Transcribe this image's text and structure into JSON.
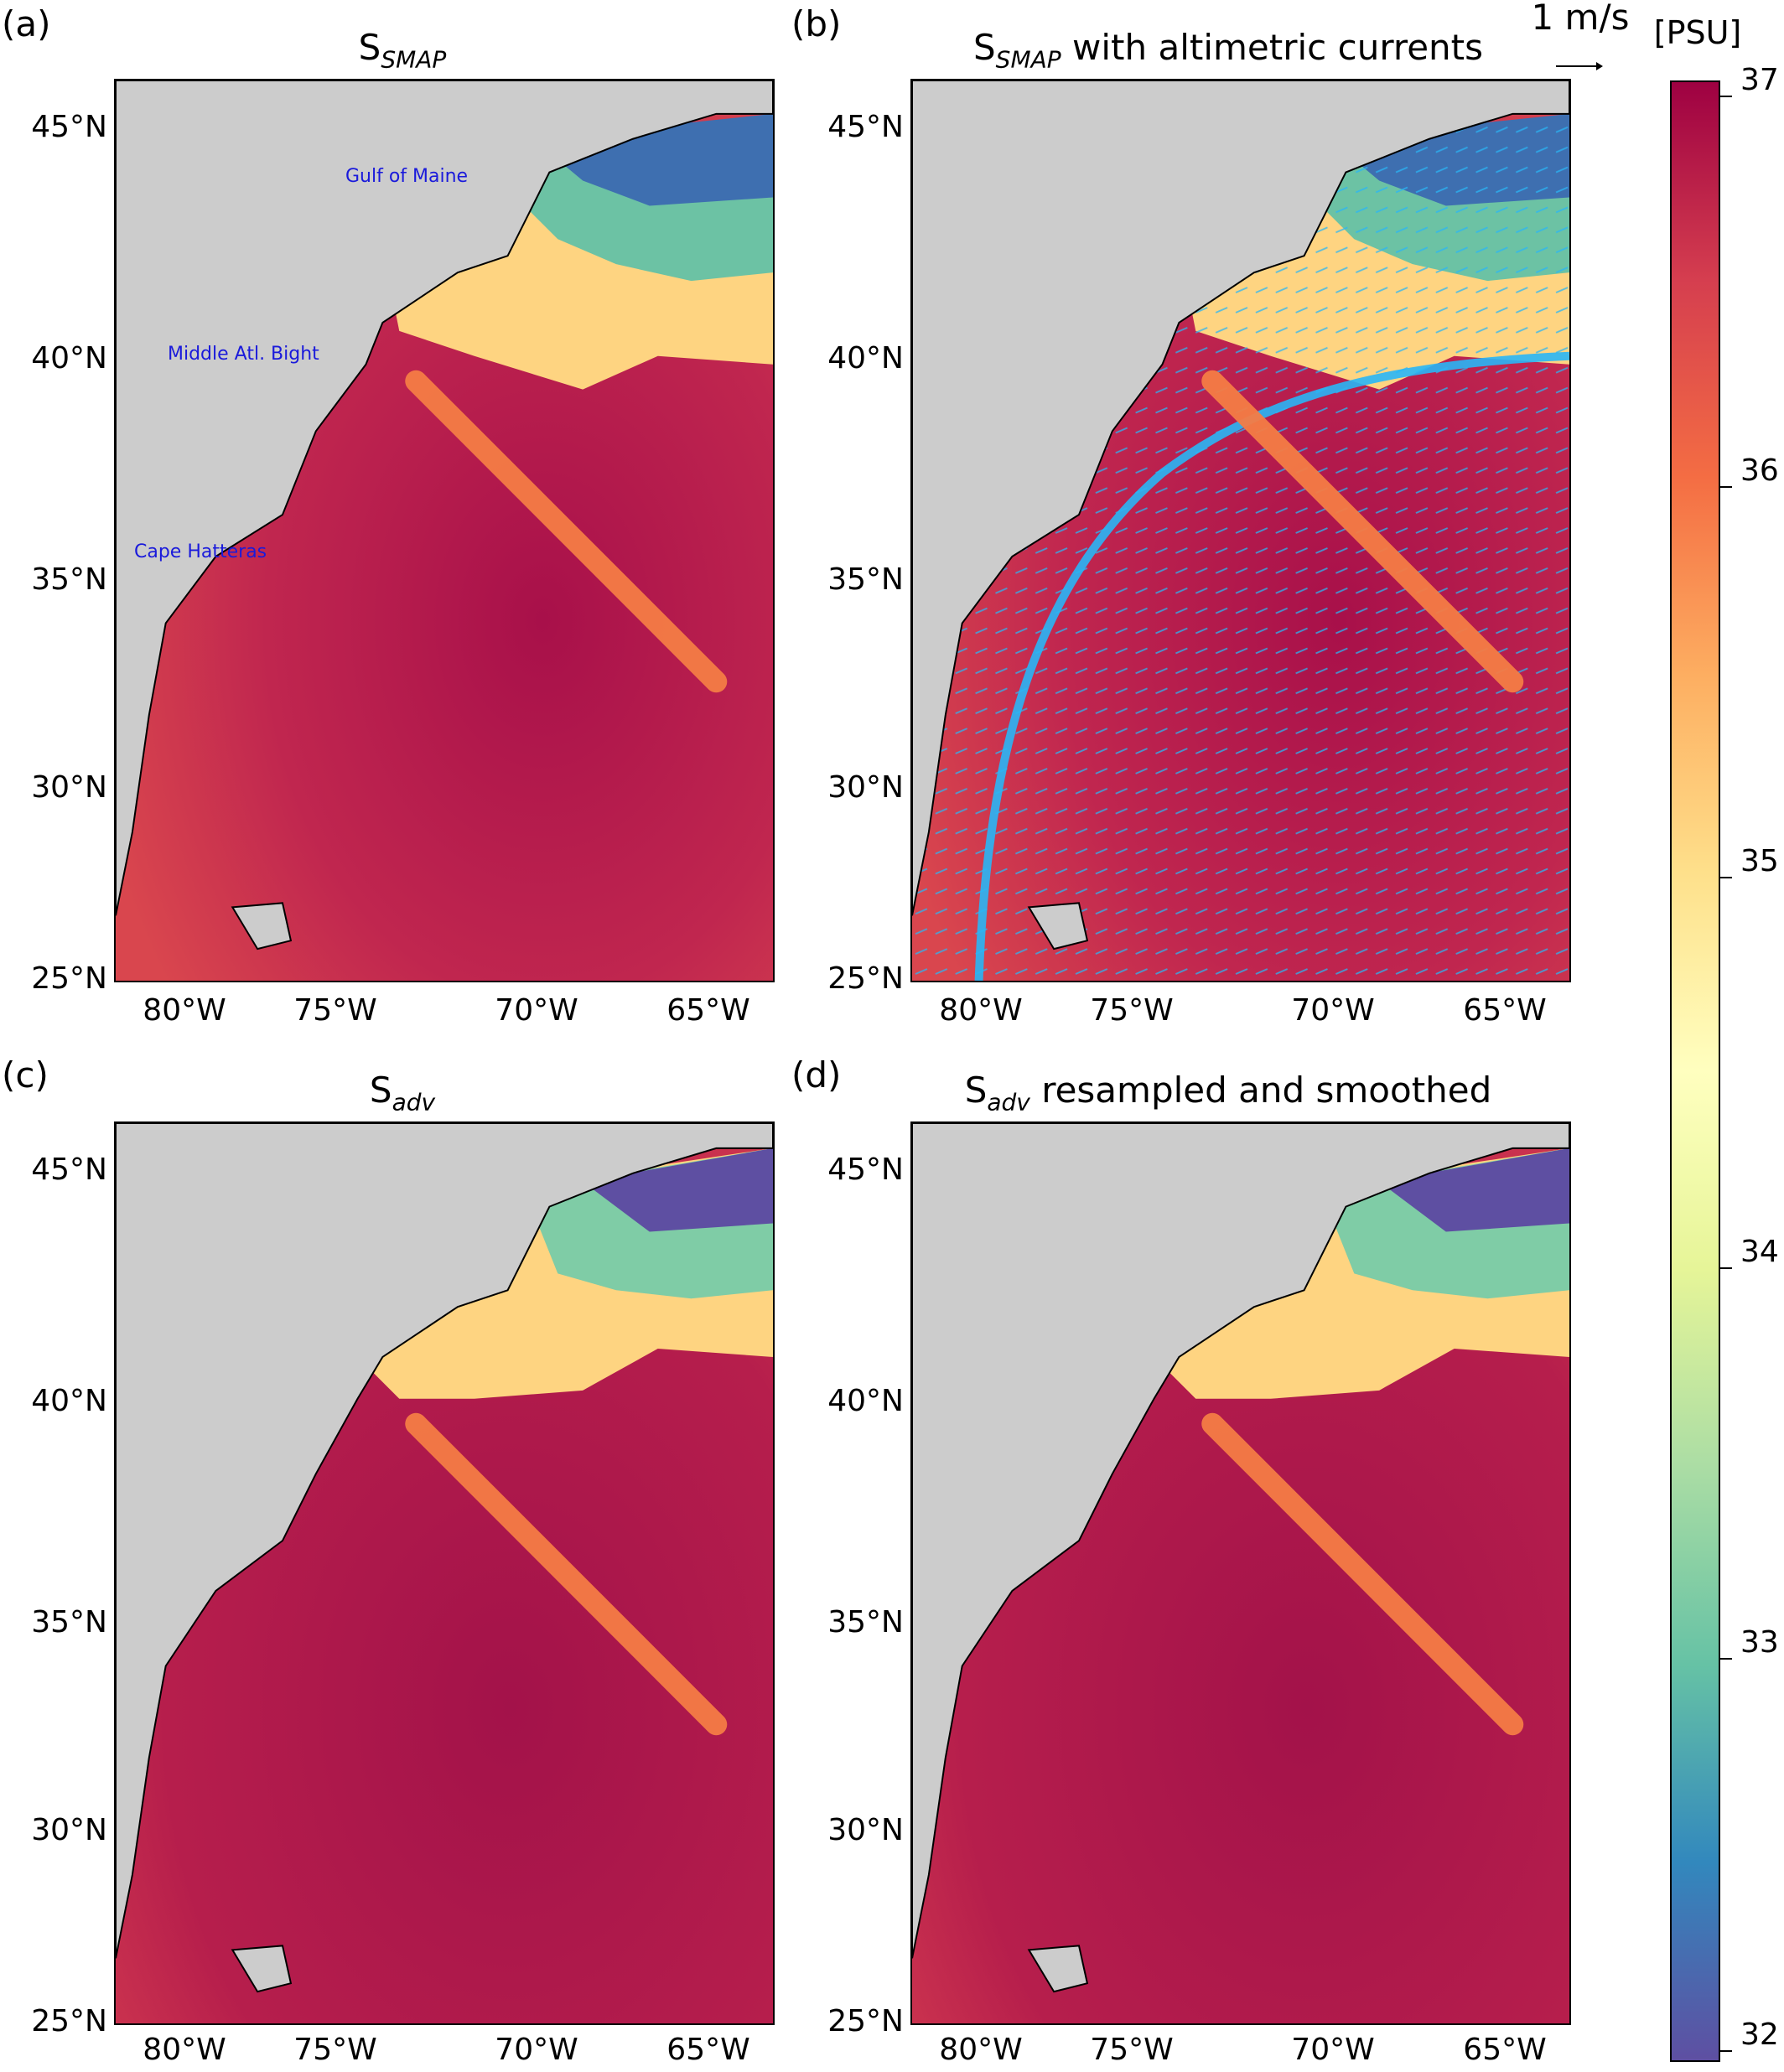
{
  "panels": [
    {
      "label": "(a)",
      "title_main": "S",
      "title_sub": "SMAP",
      "title_rest": ""
    },
    {
      "label": "(b)",
      "title_main": "S",
      "title_sub": "SMAP",
      "title_rest": " with altimetric currents"
    },
    {
      "label": "(c)",
      "title_main": "S",
      "title_sub": "adv",
      "title_rest": ""
    },
    {
      "label": "(d)",
      "title_main": "S",
      "title_sub": "adv",
      "title_rest": " resampled and smoothed"
    }
  ],
  "lat_ticks": [
    "45°N",
    "40°N",
    "35°N",
    "30°N",
    "25°N"
  ],
  "lon_ticks": [
    "80°W",
    "75°W",
    "70°W",
    "65°W"
  ],
  "region_labels": {
    "gulf_of_maine": "Gulf of Maine",
    "middle_atlantic_bight": "Middle Atl. Bight",
    "cape_hatteras": "Cape Hatteras"
  },
  "reference_vector": "1 m/s",
  "colorbar": {
    "unit": "[PSU]",
    "ticks": [
      "37",
      "36",
      "35",
      "34",
      "33",
      "32"
    ],
    "range": [
      32,
      37
    ],
    "colormap": "Spectral_r"
  },
  "colors": {
    "land": "#cccccc",
    "coast": "#000000",
    "high_salinity": "#9e0142",
    "mid_salinity": "#ffffbf",
    "low_salinity": "#5e4fa2",
    "current_vectors": "#29b6f6",
    "track": "#f57c45",
    "label_text": "#1a1adb"
  }
}
